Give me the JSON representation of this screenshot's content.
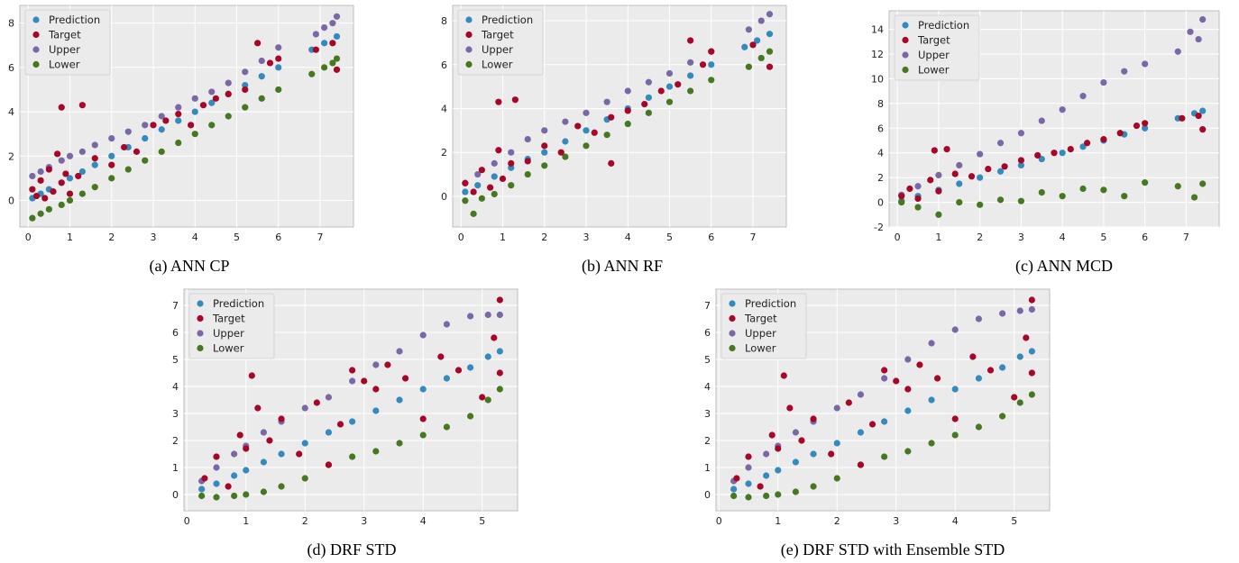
{
  "colors": {
    "plot_bg": "#ebebeb",
    "grid": "#ffffff",
    "prediction": "#348abd",
    "target": "#a60628",
    "upper": "#7a68a6",
    "lower": "#467821"
  },
  "legend_entries": [
    "Prediction",
    "Target",
    "Upper",
    "Lower"
  ],
  "chart_data": [
    {
      "type": "scatter",
      "caption": "(a) ANN CP",
      "legend_position": "top-left",
      "grid": true,
      "xlim": [
        -0.2,
        7.8
      ],
      "ylim": [
        -1.2,
        8.8
      ],
      "xticks": [
        0,
        1,
        2,
        3,
        4,
        5,
        6,
        7
      ],
      "yticks": [
        0,
        2,
        4,
        6,
        8
      ],
      "series": [
        {
          "name": "Prediction",
          "x": [
            0.1,
            0.3,
            0.5,
            0.8,
            1.0,
            1.3,
            1.6,
            2.0,
            2.4,
            2.8,
            3.2,
            3.6,
            4.0,
            4.4,
            4.8,
            5.2,
            5.6,
            6.0,
            6.8,
            7.1,
            7.4
          ],
          "y": [
            0.1,
            0.3,
            0.5,
            0.8,
            1.0,
            1.3,
            1.6,
            2.0,
            2.4,
            2.8,
            3.2,
            3.6,
            4.0,
            4.4,
            4.8,
            5.2,
            5.6,
            6.0,
            6.8,
            7.1,
            7.4
          ]
        },
        {
          "name": "Target",
          "x": [
            0.1,
            0.2,
            0.3,
            0.4,
            0.5,
            0.6,
            0.7,
            0.8,
            0.9,
            1.0,
            1.2,
            0.8,
            1.3,
            1.6,
            2.0,
            2.3,
            2.6,
            3.0,
            3.3,
            3.6,
            3.9,
            4.2,
            4.5,
            4.8,
            5.2,
            5.5,
            5.8,
            6.0,
            6.9,
            7.3,
            7.4
          ],
          "y": [
            0.5,
            0.2,
            0.9,
            0.1,
            1.4,
            0.4,
            2.1,
            0.8,
            1.2,
            0.3,
            1.1,
            4.2,
            4.3,
            1.9,
            1.6,
            2.4,
            2.2,
            3.4,
            3.6,
            3.9,
            3.4,
            4.3,
            4.6,
            4.8,
            5.0,
            7.1,
            6.2,
            6.4,
            6.8,
            7.1,
            5.9
          ]
        },
        {
          "name": "Upper",
          "x": [
            0.1,
            0.3,
            0.5,
            0.8,
            1.0,
            1.3,
            1.6,
            2.0,
            2.4,
            2.8,
            3.2,
            3.6,
            4.0,
            4.4,
            4.8,
            5.2,
            5.6,
            6.0,
            6.9,
            7.1,
            7.3,
            7.4
          ],
          "y": [
            1.1,
            1.3,
            1.5,
            1.8,
            2.0,
            2.2,
            2.5,
            2.8,
            3.1,
            3.4,
            3.8,
            4.2,
            4.6,
            4.9,
            5.3,
            5.8,
            6.3,
            6.9,
            7.5,
            7.8,
            8.0,
            8.3
          ]
        },
        {
          "name": "Lower",
          "x": [
            0.1,
            0.3,
            0.5,
            0.8,
            1.0,
            1.3,
            1.6,
            2.0,
            2.4,
            2.8,
            3.2,
            3.6,
            4.0,
            4.4,
            4.8,
            5.2,
            5.6,
            6.0,
            6.8,
            7.1,
            7.3,
            7.4
          ],
          "y": [
            -0.8,
            -0.6,
            -0.4,
            -0.2,
            0.0,
            0.3,
            0.6,
            1.0,
            1.4,
            1.8,
            2.2,
            2.6,
            3.0,
            3.4,
            3.8,
            4.2,
            4.6,
            5.0,
            5.7,
            6.0,
            6.2,
            6.4
          ]
        }
      ]
    },
    {
      "type": "scatter",
      "caption": "(b) ANN RF",
      "legend_position": "top-left",
      "grid": true,
      "xlim": [
        -0.2,
        7.8
      ],
      "ylim": [
        -1.4,
        8.7
      ],
      "xticks": [
        0,
        1,
        2,
        3,
        4,
        5,
        6,
        7
      ],
      "yticks": [
        0,
        2,
        4,
        6,
        8
      ],
      "series": [
        {
          "name": "Prediction",
          "x": [
            0.1,
            0.4,
            0.8,
            1.2,
            1.6,
            2.0,
            2.5,
            3.0,
            3.5,
            4.0,
            4.5,
            5.0,
            5.5,
            6.0,
            6.8,
            7.1,
            7.4
          ],
          "y": [
            0.2,
            0.5,
            0.9,
            1.3,
            1.7,
            2.0,
            2.5,
            3.0,
            3.5,
            4.0,
            4.5,
            5.0,
            5.5,
            6.0,
            6.8,
            7.1,
            7.4
          ]
        },
        {
          "name": "Target",
          "x": [
            0.1,
            0.3,
            0.5,
            0.7,
            0.9,
            1.0,
            1.2,
            0.9,
            1.3,
            1.6,
            2.0,
            2.4,
            2.8,
            3.2,
            3.6,
            3.6,
            4.0,
            4.4,
            4.8,
            5.2,
            5.5,
            5.8,
            6.0,
            7.0,
            7.4
          ],
          "y": [
            0.6,
            0.2,
            1.2,
            0.4,
            2.1,
            0.8,
            1.5,
            4.3,
            4.4,
            1.6,
            2.3,
            2.0,
            3.2,
            2.9,
            1.5,
            3.6,
            3.9,
            4.2,
            4.8,
            5.1,
            7.1,
            6.0,
            6.6,
            6.9,
            5.9
          ]
        },
        {
          "name": "Upper",
          "x": [
            0.1,
            0.4,
            0.8,
            1.2,
            1.6,
            2.0,
            2.5,
            3.0,
            3.5,
            4.0,
            4.5,
            5.0,
            5.5,
            6.0,
            6.9,
            7.2,
            7.4
          ],
          "y": [
            0.6,
            1.0,
            1.5,
            2.0,
            2.6,
            3.0,
            3.4,
            3.8,
            4.3,
            4.8,
            5.2,
            5.6,
            6.1,
            6.6,
            7.6,
            8.0,
            8.3
          ]
        },
        {
          "name": "Lower",
          "x": [
            0.1,
            0.3,
            0.5,
            0.8,
            1.2,
            1.6,
            2.0,
            2.5,
            3.0,
            3.5,
            4.0,
            4.5,
            5.0,
            5.5,
            6.0,
            6.9,
            7.2,
            7.4
          ],
          "y": [
            -0.2,
            -0.8,
            -0.1,
            0.1,
            0.5,
            1.0,
            1.4,
            1.8,
            2.3,
            2.8,
            3.3,
            3.8,
            4.3,
            4.8,
            5.3,
            5.9,
            6.3,
            6.6
          ]
        }
      ]
    },
    {
      "type": "scatter",
      "caption": "(c) ANN MCD",
      "legend_position": "top-left",
      "grid": true,
      "xlim": [
        -0.2,
        7.8
      ],
      "ylim": [
        -2,
        15.5
      ],
      "xticks": [
        0,
        1,
        2,
        3,
        4,
        5,
        6,
        7
      ],
      "yticks": [
        -2,
        0,
        2,
        4,
        6,
        8,
        10,
        12,
        14
      ],
      "series": [
        {
          "name": "Prediction",
          "x": [
            0.1,
            0.5,
            1.0,
            1.5,
            2.0,
            2.5,
            3.0,
            3.5,
            4.0,
            4.5,
            5.0,
            5.5,
            6.0,
            6.8,
            7.2,
            7.4
          ],
          "y": [
            0.1,
            0.5,
            1.0,
            1.5,
            2.0,
            2.5,
            3.0,
            3.5,
            4.0,
            4.5,
            5.0,
            5.5,
            6.0,
            6.8,
            7.2,
            7.4
          ]
        },
        {
          "name": "Target",
          "x": [
            0.1,
            0.3,
            0.5,
            0.8,
            1.0,
            1.2,
            0.9,
            1.4,
            1.8,
            2.2,
            2.6,
            3.0,
            3.4,
            3.8,
            4.2,
            4.6,
            5.0,
            5.4,
            5.8,
            6.0,
            6.9,
            7.3,
            7.4
          ],
          "y": [
            0.5,
            1.1,
            0.3,
            1.8,
            0.9,
            4.3,
            4.2,
            2.3,
            2.1,
            2.7,
            2.9,
            3.4,
            3.8,
            4.0,
            4.3,
            4.8,
            5.1,
            5.6,
            6.2,
            6.4,
            6.8,
            7.0,
            5.9
          ]
        },
        {
          "name": "Upper",
          "x": [
            0.1,
            0.5,
            1.0,
            1.5,
            2.0,
            2.5,
            3.0,
            3.5,
            4.0,
            4.5,
            5.0,
            5.5,
            6.0,
            6.8,
            7.1,
            7.3,
            7.4
          ],
          "y": [
            0.6,
            1.3,
            2.2,
            3.0,
            3.9,
            4.8,
            5.6,
            6.6,
            7.5,
            8.6,
            9.7,
            10.6,
            11.2,
            12.2,
            13.8,
            13.2,
            14.8
          ]
        },
        {
          "name": "Lower",
          "x": [
            0.1,
            0.5,
            1.0,
            1.5,
            2.0,
            2.5,
            3.0,
            3.5,
            4.0,
            4.5,
            5.0,
            5.5,
            6.0,
            6.8,
            7.2,
            7.4
          ],
          "y": [
            0.0,
            -0.4,
            -1.0,
            0.0,
            -0.2,
            0.2,
            0.1,
            0.8,
            0.5,
            1.1,
            1.0,
            0.5,
            1.6,
            1.3,
            0.4,
            1.5
          ]
        }
      ]
    },
    {
      "type": "scatter",
      "caption": "(d) DRF STD",
      "legend_position": "top-left",
      "grid": true,
      "xlim": [
        -0.05,
        5.6
      ],
      "ylim": [
        -0.6,
        7.6
      ],
      "xticks": [
        0,
        1,
        2,
        3,
        4,
        5
      ],
      "yticks": [
        0,
        1,
        2,
        3,
        4,
        5,
        6,
        7
      ],
      "series": [
        {
          "name": "Prediction",
          "x": [
            0.25,
            0.5,
            0.8,
            1.0,
            1.3,
            1.6,
            2.0,
            2.4,
            2.8,
            3.2,
            3.6,
            4.0,
            4.4,
            4.8,
            5.1,
            5.3
          ],
          "y": [
            0.2,
            0.4,
            0.7,
            0.9,
            1.2,
            1.5,
            1.9,
            2.3,
            2.7,
            3.1,
            3.5,
            3.9,
            4.3,
            4.7,
            5.1,
            5.3
          ]
        },
        {
          "name": "Target",
          "x": [
            0.3,
            0.5,
            0.7,
            0.9,
            1.0,
            1.1,
            1.2,
            1.4,
            1.6,
            1.9,
            2.2,
            2.4,
            2.6,
            2.8,
            3.0,
            3.2,
            3.4,
            3.7,
            4.0,
            4.3,
            4.6,
            5.0,
            5.2,
            5.3,
            5.3
          ],
          "y": [
            0.6,
            1.4,
            0.3,
            2.2,
            1.7,
            4.4,
            3.2,
            2.0,
            2.8,
            1.5,
            3.4,
            1.1,
            2.6,
            4.6,
            4.2,
            3.9,
            4.8,
            4.3,
            2.8,
            5.1,
            4.6,
            3.6,
            5.8,
            7.2,
            4.5
          ]
        },
        {
          "name": "Upper",
          "x": [
            0.25,
            0.5,
            0.8,
            1.0,
            1.3,
            1.6,
            2.0,
            2.4,
            2.8,
            3.2,
            3.6,
            4.0,
            4.4,
            4.8,
            5.1,
            5.3
          ],
          "y": [
            0.5,
            1.0,
            1.5,
            1.8,
            2.3,
            2.7,
            3.2,
            3.6,
            4.2,
            4.8,
            5.3,
            5.9,
            6.3,
            6.6,
            6.65,
            6.65
          ]
        },
        {
          "name": "Lower",
          "x": [
            0.25,
            0.5,
            0.8,
            1.0,
            1.3,
            1.6,
            2.0,
            2.4,
            2.8,
            3.2,
            3.6,
            4.0,
            4.4,
            4.8,
            5.1,
            5.3
          ],
          "y": [
            -0.05,
            -0.1,
            -0.05,
            0.0,
            0.1,
            0.3,
            0.6,
            1.1,
            1.4,
            1.6,
            1.9,
            2.2,
            2.5,
            2.9,
            3.5,
            3.9
          ]
        }
      ]
    },
    {
      "type": "scatter",
      "caption": "(e) DRF STD with Ensemble STD",
      "legend_position": "top-left",
      "grid": true,
      "xlim": [
        -0.05,
        5.6
      ],
      "ylim": [
        -0.6,
        7.6
      ],
      "xticks": [
        0,
        1,
        2,
        3,
        4,
        5
      ],
      "yticks": [
        0,
        1,
        2,
        3,
        4,
        5,
        6,
        7
      ],
      "series": [
        {
          "name": "Prediction",
          "x": [
            0.25,
            0.5,
            0.8,
            1.0,
            1.3,
            1.6,
            2.0,
            2.4,
            2.8,
            3.2,
            3.6,
            4.0,
            4.4,
            4.8,
            5.1,
            5.3
          ],
          "y": [
            0.2,
            0.4,
            0.7,
            0.9,
            1.2,
            1.5,
            1.9,
            2.3,
            2.7,
            3.1,
            3.5,
            3.9,
            4.3,
            4.7,
            5.1,
            5.3
          ]
        },
        {
          "name": "Target",
          "x": [
            0.3,
            0.5,
            0.7,
            0.9,
            1.0,
            1.1,
            1.2,
            1.4,
            1.6,
            1.9,
            2.2,
            2.4,
            2.6,
            2.8,
            3.0,
            3.2,
            3.4,
            3.7,
            4.0,
            4.3,
            4.6,
            5.0,
            5.2,
            5.3,
            5.3
          ],
          "y": [
            0.6,
            1.4,
            0.3,
            2.2,
            1.7,
            4.4,
            3.2,
            2.0,
            2.8,
            1.5,
            3.4,
            1.1,
            2.6,
            4.6,
            4.2,
            3.9,
            4.8,
            4.3,
            2.8,
            5.1,
            4.6,
            3.6,
            5.8,
            7.2,
            4.5
          ]
        },
        {
          "name": "Upper",
          "x": [
            0.25,
            0.5,
            0.8,
            1.0,
            1.3,
            1.6,
            2.0,
            2.4,
            2.8,
            3.2,
            3.6,
            4.0,
            4.4,
            4.8,
            5.1,
            5.3
          ],
          "y": [
            0.5,
            1.0,
            1.5,
            1.8,
            2.3,
            2.7,
            3.2,
            3.7,
            4.3,
            5.0,
            5.6,
            6.1,
            6.5,
            6.7,
            6.8,
            6.85
          ]
        },
        {
          "name": "Lower",
          "x": [
            0.25,
            0.5,
            0.8,
            1.0,
            1.3,
            1.6,
            2.0,
            2.4,
            2.8,
            3.2,
            3.6,
            4.0,
            4.4,
            4.8,
            5.1,
            5.3
          ],
          "y": [
            -0.05,
            -0.1,
            -0.05,
            0.0,
            0.1,
            0.3,
            0.6,
            1.1,
            1.4,
            1.6,
            1.9,
            2.2,
            2.5,
            2.9,
            3.4,
            3.7
          ]
        }
      ]
    }
  ]
}
